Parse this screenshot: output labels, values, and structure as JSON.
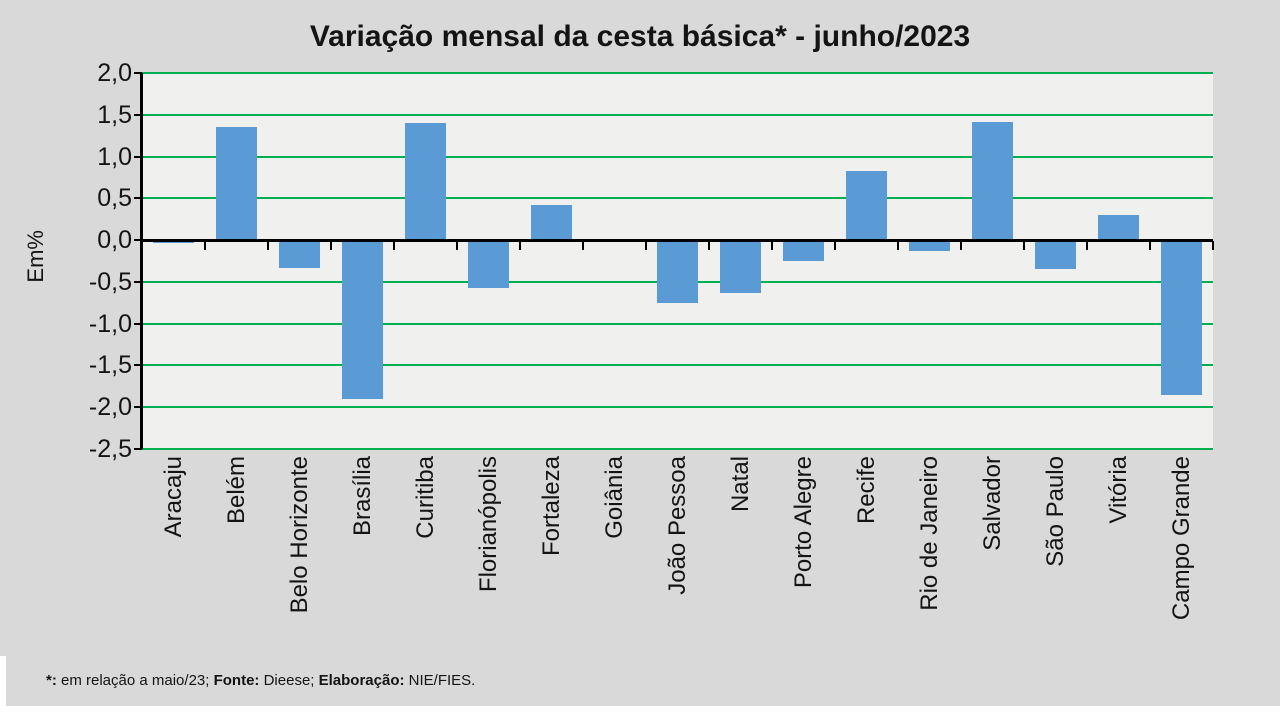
{
  "page": {
    "background": "#d9d9d9",
    "bottom_strip_color": "#ffffff"
  },
  "title": "Variação mensal da cesta básica* - junho/2023",
  "y_axis_title": "Em%",
  "footnote": {
    "segments": [
      {
        "text": "*:",
        "bold": true
      },
      {
        "text": " em relação a maio/23; ",
        "bold": false
      },
      {
        "text": "Fonte:",
        "bold": true
      },
      {
        "text": " Dieese; ",
        "bold": false
      },
      {
        "text": "Elaboração:",
        "bold": true
      },
      {
        "text": " NIE/FIES.",
        "bold": false
      }
    ]
  },
  "chart_data": {
    "type": "bar",
    "title": "Variação mensal da cesta básica* - junho/2023",
    "xlabel": "",
    "ylabel": "Em%",
    "categories": [
      "Aracaju",
      "Belém",
      "Belo Horizonte",
      "Brasília",
      "Curitiba",
      "Florianópolis",
      "Fortaleza",
      "Goiânia",
      "João Pessoa",
      "Natal",
      "Porto Alegre",
      "Recife",
      "Rio de Janeiro",
      "Salvador",
      "São Paulo",
      "Vitória",
      "Campo Grande"
    ],
    "values": [
      -0.03,
      1.35,
      -0.33,
      -1.9,
      1.4,
      -0.57,
      0.42,
      0.0,
      -0.75,
      -0.63,
      -0.25,
      0.83,
      -0.13,
      1.41,
      -0.35,
      0.3,
      -1.85
    ],
    "ylim": [
      -2.5,
      2.0
    ],
    "yticks": [
      {
        "label": "2,0",
        "v": 2.0
      },
      {
        "label": "1,5",
        "v": 1.5
      },
      {
        "label": "1,0",
        "v": 1.0
      },
      {
        "label": "0,5",
        "v": 0.5
      },
      {
        "label": "0,0",
        "v": 0.0
      },
      {
        "label": "-0,5",
        "v": -0.5
      },
      {
        "label": "-1,0",
        "v": -1.0
      },
      {
        "label": "-1,5",
        "v": -1.5
      },
      {
        "label": "-2,0",
        "v": -2.0
      },
      {
        "label": "-2,5",
        "v": -2.5
      }
    ],
    "grid": true,
    "legend": false,
    "gridline_every": 0.5,
    "colors": {
      "bar": "#5b9bd5",
      "grid": "#00b050",
      "axis": "#000000",
      "plot_bg": "#f0f0ef",
      "page_bg": "#d9d9d9",
      "text": "#141414"
    }
  }
}
